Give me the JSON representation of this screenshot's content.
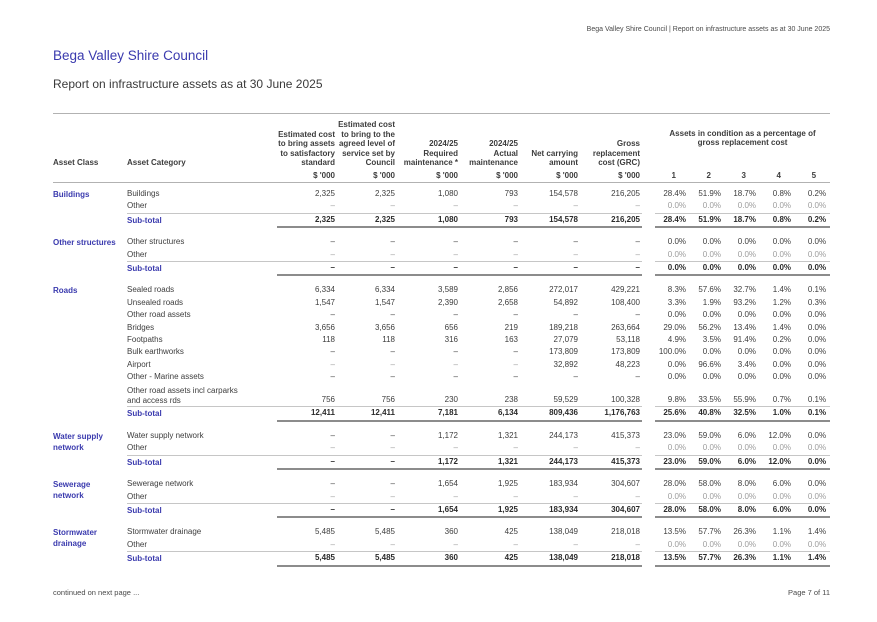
{
  "document_header": {
    "top_right": "Bega Valley Shire Council | Report on infrastructure assets as at 30 June 2025",
    "title": "Bega Valley Shire Council",
    "subtitle": "Report on infrastructure assets as at 30 June 2025"
  },
  "table": {
    "columns": {
      "asset_class": "Asset Class",
      "asset_category": "Asset Category",
      "unit": "$ '000",
      "cost_headers": [
        "Estimated cost\nto bring assets\nto satisfactory\nstandard",
        "Estimated cost\nto bring to the\nagreed level of\nservice set by\nCouncil",
        "2024/25\nRequired\nmaintenance *",
        "2024/25\nActual\nmaintenance",
        "Net carrying\namount",
        "Gross\nreplacement\ncost (GRC)"
      ],
      "condition_group": "Assets in condition as a percentage of gross replacement cost",
      "condition_cols": [
        "1",
        "2",
        "3",
        "4",
        "5"
      ]
    },
    "subtotal_label": "Sub-total",
    "sections": [
      {
        "asset_class": "Buildings",
        "rows": [
          {
            "category": "Buildings",
            "values": [
              "2,325",
              "2,325",
              "1,080",
              "793",
              "154,578",
              "216,205"
            ],
            "condition": [
              "28.4%",
              "51.9%",
              "18.7%",
              "0.8%",
              "0.2%"
            ]
          },
          {
            "category": "Other",
            "style": "muted",
            "values": [
              "–",
              "–",
              "–",
              "–",
              "–",
              "–"
            ],
            "condition": [
              "0.0%",
              "0.0%",
              "0.0%",
              "0.0%",
              "0.0%"
            ]
          }
        ],
        "subtotal": {
          "values": [
            "2,325",
            "2,325",
            "1,080",
            "793",
            "154,578",
            "216,205"
          ],
          "condition": [
            "28.4%",
            "51.9%",
            "18.7%",
            "0.8%",
            "0.2%"
          ]
        }
      },
      {
        "asset_class": "Other structures",
        "rows": [
          {
            "category": "Other structures",
            "values": [
              "–",
              "–",
              "–",
              "–",
              "–",
              "–"
            ],
            "condition": [
              "0.0%",
              "0.0%",
              "0.0%",
              "0.0%",
              "0.0%"
            ]
          },
          {
            "category": "Other",
            "style": "muted",
            "values": [
              "–",
              "–",
              "–",
              "–",
              "–",
              "–"
            ],
            "condition": [
              "0.0%",
              "0.0%",
              "0.0%",
              "0.0%",
              "0.0%"
            ]
          }
        ],
        "subtotal": {
          "values": [
            "–",
            "–",
            "–",
            "–",
            "–",
            "–"
          ],
          "condition": [
            "0.0%",
            "0.0%",
            "0.0%",
            "0.0%",
            "0.0%"
          ]
        }
      },
      {
        "asset_class": "Roads",
        "rows": [
          {
            "category": "Sealed roads",
            "values": [
              "6,334",
              "6,334",
              "3,589",
              "2,856",
              "272,017",
              "429,221"
            ],
            "condition": [
              "8.3%",
              "57.6%",
              "32.7%",
              "1.4%",
              "0.1%"
            ]
          },
          {
            "category": "Unsealed roads",
            "values": [
              "1,547",
              "1,547",
              "2,390",
              "2,658",
              "54,892",
              "108,400"
            ],
            "condition": [
              "3.3%",
              "1.9%",
              "93.2%",
              "1.2%",
              "0.3%"
            ]
          },
          {
            "category": "Other road assets",
            "values": [
              "–",
              "–",
              "–",
              "–",
              "–",
              "–"
            ],
            "condition": [
              "0.0%",
              "0.0%",
              "0.0%",
              "0.0%",
              "0.0%"
            ]
          },
          {
            "category": "Bridges",
            "values": [
              "3,656",
              "3,656",
              "656",
              "219",
              "189,218",
              "263,664"
            ],
            "condition": [
              "29.0%",
              "56.2%",
              "13.4%",
              "1.4%",
              "0.0%"
            ]
          },
          {
            "category": "Footpaths",
            "values": [
              "118",
              "118",
              "316",
              "163",
              "27,079",
              "53,118"
            ],
            "condition": [
              "4.9%",
              "3.5%",
              "91.4%",
              "0.2%",
              "0.0%"
            ]
          },
          {
            "category": "Bulk earthworks",
            "values": [
              "–",
              "–",
              "–",
              "–",
              "173,809",
              "173,809"
            ],
            "condition": [
              "100.0%",
              "0.0%",
              "0.0%",
              "0.0%",
              "0.0%"
            ]
          },
          {
            "category": "Airport",
            "style": "muted-dash",
            "values": [
              "–",
              "–",
              "–",
              "–",
              "32,892",
              "48,223"
            ],
            "condition": [
              "0.0%",
              "96.6%",
              "3.4%",
              "0.0%",
              "0.0%"
            ]
          },
          {
            "category": "Other - Marine assets",
            "values": [
              "–",
              "–",
              "–",
              "–",
              "–",
              "–"
            ],
            "condition": [
              "0.0%",
              "0.0%",
              "0.0%",
              "0.0%",
              "0.0%"
            ]
          },
          {
            "category": "Other road assets incl carparks\nand access rds",
            "values": [
              "756",
              "756",
              "230",
              "238",
              "59,529",
              "100,328"
            ],
            "condition": [
              "9.8%",
              "33.5%",
              "55.9%",
              "0.7%",
              "0.1%"
            ]
          }
        ],
        "subtotal": {
          "values": [
            "12,411",
            "12,411",
            "7,181",
            "6,134",
            "809,436",
            "1,176,763"
          ],
          "condition": [
            "25.6%",
            "40.8%",
            "32.5%",
            "1.0%",
            "0.1%"
          ]
        }
      },
      {
        "asset_class": "Water supply\nnetwork",
        "rows": [
          {
            "category": "Water supply network",
            "values": [
              "–",
              "–",
              "1,172",
              "1,321",
              "244,173",
              "415,373"
            ],
            "condition": [
              "23.0%",
              "59.0%",
              "6.0%",
              "12.0%",
              "0.0%"
            ]
          },
          {
            "category": "Other",
            "style": "muted",
            "values": [
              "–",
              "–",
              "–",
              "–",
              "–",
              "–"
            ],
            "condition": [
              "0.0%",
              "0.0%",
              "0.0%",
              "0.0%",
              "0.0%"
            ]
          }
        ],
        "subtotal": {
          "values": [
            "–",
            "–",
            "1,172",
            "1,321",
            "244,173",
            "415,373"
          ],
          "condition": [
            "23.0%",
            "59.0%",
            "6.0%",
            "12.0%",
            "0.0%"
          ]
        }
      },
      {
        "asset_class": "Sewerage\nnetwork",
        "rows": [
          {
            "category": "Sewerage network",
            "values": [
              "–",
              "–",
              "1,654",
              "1,925",
              "183,934",
              "304,607"
            ],
            "condition": [
              "28.0%",
              "58.0%",
              "8.0%",
              "6.0%",
              "0.0%"
            ]
          },
          {
            "category": "Other",
            "style": "muted",
            "values": [
              "–",
              "–",
              "–",
              "–",
              "–",
              "–"
            ],
            "condition": [
              "0.0%",
              "0.0%",
              "0.0%",
              "0.0%",
              "0.0%"
            ]
          }
        ],
        "subtotal": {
          "values": [
            "–",
            "–",
            "1,654",
            "1,925",
            "183,934",
            "304,607"
          ],
          "condition": [
            "28.0%",
            "58.0%",
            "8.0%",
            "6.0%",
            "0.0%"
          ]
        }
      },
      {
        "asset_class": "Stormwater\ndrainage",
        "rows": [
          {
            "category": "Stormwater drainage",
            "values": [
              "5,485",
              "5,485",
              "360",
              "425",
              "138,049",
              "218,018"
            ],
            "condition": [
              "13.5%",
              "57.7%",
              "26.3%",
              "1.1%",
              "1.4%"
            ]
          },
          {
            "category": "Other",
            "style": "muted",
            "values": [
              "–",
              "–",
              "–",
              "–",
              "–",
              "–"
            ],
            "condition": [
              "0.0%",
              "0.0%",
              "0.0%",
              "0.0%",
              "0.0%"
            ]
          }
        ],
        "subtotal": {
          "values": [
            "5,485",
            "5,485",
            "360",
            "425",
            "138,049",
            "218,018"
          ],
          "condition": [
            "13.5%",
            "57.7%",
            "26.3%",
            "1.1%",
            "1.4%"
          ]
        }
      }
    ]
  },
  "footer": {
    "left": "continued on next page ...",
    "right": "Page 7 of 11"
  },
  "colors": {
    "accent_blue": "#3a3aae"
  }
}
